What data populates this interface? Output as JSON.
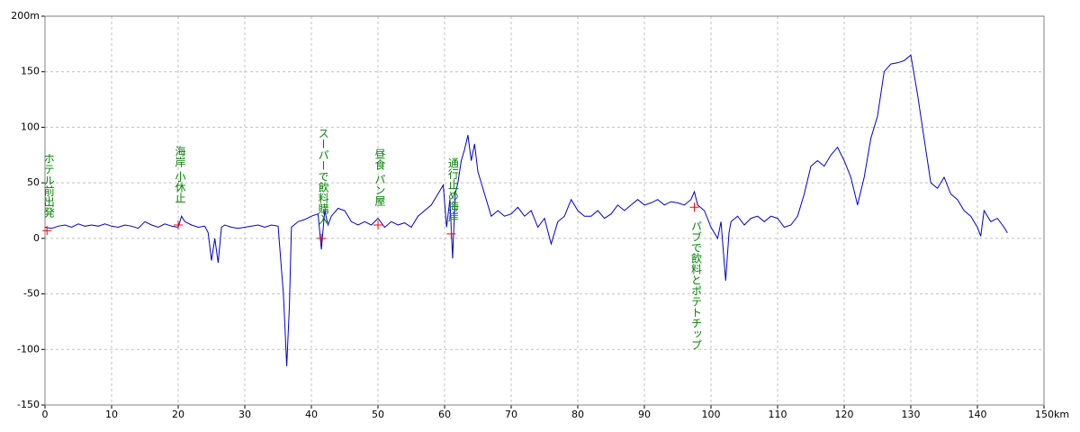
{
  "chart_data": {
    "type": "line",
    "color": "#0000cc",
    "grid": true,
    "xlim": [
      0,
      150
    ],
    "ylim": [
      -150,
      200
    ],
    "xticks": [
      0,
      10,
      20,
      30,
      40,
      50,
      60,
      70,
      80,
      90,
      100,
      110,
      120,
      130,
      140,
      {
        "value": 150,
        "label": "150km"
      }
    ],
    "yticks": [
      {
        "value": 200,
        "label": "200m"
      },
      150,
      100,
      50,
      0,
      -50,
      -100,
      -150
    ],
    "x": [
      0,
      1,
      2,
      3,
      4,
      5,
      6,
      7,
      8,
      9,
      10,
      11,
      12,
      13,
      14,
      15,
      16,
      17,
      18,
      19,
      20,
      20.5,
      21,
      22,
      23,
      24,
      24.5,
      25,
      25.5,
      26,
      26.5,
      27,
      28,
      29,
      30,
      31,
      32,
      33,
      34,
      35,
      35.8,
      36.3,
      36.7,
      37,
      38,
      39,
      40,
      41,
      41.5,
      42,
      42.5,
      43,
      44,
      45,
      46,
      47,
      48,
      49,
      50,
      51,
      52,
      53,
      54,
      55,
      56,
      57,
      58,
      59,
      59.8,
      60.3,
      60.8,
      61.2,
      61.6,
      62,
      62.5,
      63,
      63.5,
      64,
      64.5,
      65,
      66,
      67,
      68,
      69,
      70,
      71,
      72,
      73,
      74,
      75,
      76,
      77,
      78,
      79,
      80,
      81,
      82,
      83,
      84,
      85,
      86,
      87,
      88,
      89,
      90,
      91,
      92,
      93,
      94,
      95,
      96,
      97,
      97.5,
      98,
      99,
      100,
      101,
      101.5,
      102.2,
      102.7,
      103,
      104,
      105,
      106,
      107,
      108,
      109,
      110,
      111,
      112,
      113,
      114,
      115,
      116,
      117,
      118,
      119,
      120,
      121,
      122,
      123,
      124,
      125,
      126,
      127,
      128,
      129,
      130,
      131,
      132,
      133,
      134,
      135,
      136,
      137,
      138,
      139,
      140,
      140.5,
      141,
      142,
      143,
      144,
      144.5
    ],
    "values": [
      10,
      9,
      11,
      12,
      10,
      13,
      11,
      12,
      11,
      13,
      11,
      10,
      12,
      11,
      9,
      15,
      12,
      10,
      13,
      11,
      10,
      20,
      15,
      12,
      10,
      11,
      5,
      -20,
      0,
      -22,
      10,
      12,
      10,
      9,
      10,
      11,
      12,
      10,
      12,
      11,
      -50,
      -115,
      -60,
      10,
      15,
      17,
      20,
      22,
      -10,
      25,
      12,
      20,
      27,
      25,
      15,
      12,
      15,
      12,
      18,
      10,
      15,
      12,
      14,
      10,
      20,
      25,
      30,
      40,
      48,
      10,
      35,
      -18,
      40,
      50,
      70,
      80,
      93,
      70,
      85,
      60,
      40,
      20,
      25,
      20,
      22,
      28,
      20,
      25,
      10,
      18,
      -5,
      15,
      20,
      35,
      25,
      20,
      20,
      25,
      18,
      22,
      30,
      25,
      30,
      35,
      30,
      32,
      35,
      30,
      33,
      32,
      30,
      35,
      42,
      30,
      25,
      10,
      0,
      15,
      -38,
      5,
      15,
      20,
      12,
      18,
      20,
      15,
      20,
      18,
      10,
      12,
      20,
      40,
      65,
      70,
      65,
      75,
      82,
      70,
      55,
      30,
      55,
      90,
      110,
      150,
      157,
      158,
      160,
      165,
      130,
      90,
      50,
      45,
      55,
      40,
      35,
      25,
      20,
      10,
      2,
      25,
      15,
      18,
      10,
      5
    ],
    "annotations": [
      {
        "text": "ホテル前出発",
        "x": 0.3,
        "y": 7
      },
      {
        "text": "海岸 小休止",
        "x": 20,
        "y": 12
      },
      {
        "text": "スーパーで飲料購入",
        "x": 41.5,
        "y": 0
      },
      {
        "text": "昼食 パン屋",
        "x": 50,
        "y": 12
      },
      {
        "text": "通行止め海岸",
        "x": 61,
        "y": 4
      },
      {
        "text": "パブで飲料とポテトチップ",
        "x": 97.5,
        "y": 28
      }
    ]
  }
}
